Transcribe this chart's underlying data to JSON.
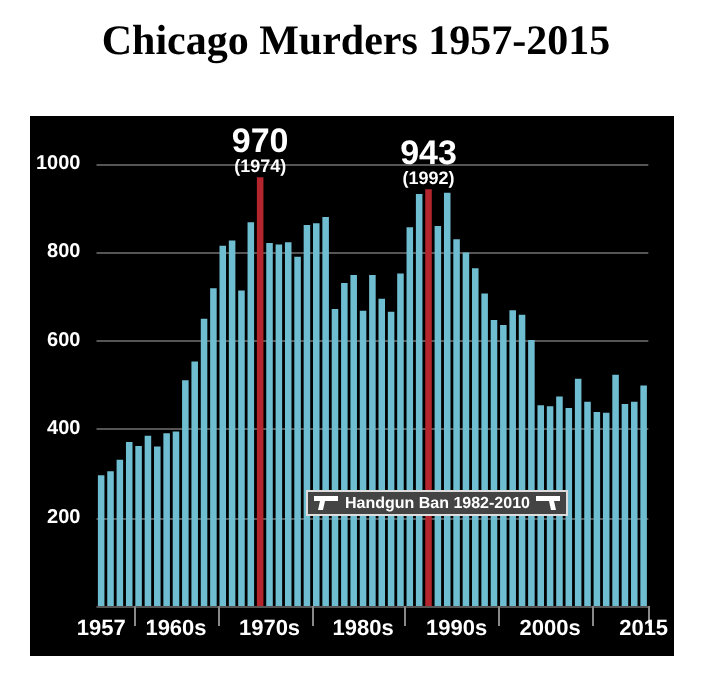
{
  "chart_data": {
    "type": "bar",
    "title": "Chicago Murders 1957-2015",
    "categories": [
      "1957",
      null,
      null,
      null,
      null,
      null,
      null,
      null,
      "1960s",
      null,
      null,
      null,
      null,
      null,
      null,
      null,
      null,
      null,
      "1970s",
      null,
      null,
      null,
      null,
      null,
      null,
      null,
      null,
      null,
      "1980s",
      null,
      null,
      null,
      null,
      null,
      null,
      null,
      null,
      null,
      "1990s",
      null,
      null,
      null,
      null,
      null,
      null,
      null,
      null,
      null,
      "2000s",
      null,
      null,
      null,
      null,
      null,
      null,
      null,
      null,
      null,
      "2015"
    ],
    "values": [
      296,
      305,
      331,
      371,
      362,
      385,
      361,
      391,
      395,
      511,
      553,
      650,
      719,
      815,
      827,
      714,
      868,
      970,
      821,
      818,
      823,
      790,
      862,
      866,
      880,
      672,
      731,
      749,
      668,
      749,
      695,
      666,
      752,
      857,
      932,
      943,
      860,
      935,
      830,
      800,
      764,
      707,
      647,
      636,
      669,
      659,
      602,
      454,
      452,
      474,
      448,
      514,
      462,
      439,
      437,
      523,
      457,
      462,
      499
    ],
    "colors": [
      "#6fbdd1",
      "#6fbdd1",
      "#6fbdd1",
      "#6fbdd1",
      "#6fbdd1",
      "#6fbdd1",
      "#6fbdd1",
      "#6fbdd1",
      "#6fbdd1",
      "#6fbdd1",
      "#6fbdd1",
      "#6fbdd1",
      "#6fbdd1",
      "#6fbdd1",
      "#6fbdd1",
      "#6fbdd1",
      "#6fbdd1",
      "#b3262d",
      "#6fbdd1",
      "#6fbdd1",
      "#6fbdd1",
      "#6fbdd1",
      "#6fbdd1",
      "#6fbdd1",
      "#6fbdd1",
      "#6fbdd1",
      "#6fbdd1",
      "#6fbdd1",
      "#6fbdd1",
      "#6fbdd1",
      "#6fbdd1",
      "#6fbdd1",
      "#6fbdd1",
      "#6fbdd1",
      "#6fbdd1",
      "#b3262d",
      "#6fbdd1",
      "#6fbdd1",
      "#6fbdd1",
      "#6fbdd1",
      "#6fbdd1",
      "#6fbdd1",
      "#6fbdd1",
      "#6fbdd1",
      "#6fbdd1",
      "#6fbdd1",
      "#6fbdd1",
      "#6fbdd1",
      "#6fbdd1",
      "#6fbdd1",
      "#6fbdd1",
      "#6fbdd1",
      "#6fbdd1",
      "#6fbdd1",
      "#6fbdd1",
      "#6fbdd1",
      "#6fbdd1",
      "#6fbdd1",
      "#6fbdd1"
    ],
    "value_labels": [
      null,
      null,
      null,
      null,
      null,
      null,
      null,
      null,
      null,
      null,
      null,
      null,
      null,
      null,
      null,
      null,
      null,
      "970",
      null,
      null,
      null,
      null,
      null,
      null,
      null,
      null,
      null,
      null,
      null,
      null,
      null,
      null,
      null,
      null,
      null,
      "943",
      null,
      null,
      null,
      null,
      null,
      null,
      null,
      null,
      null,
      null,
      null,
      null,
      null,
      null,
      null,
      null,
      null,
      null,
      null,
      null,
      null,
      null,
      null
    ],
    "annotations": [
      "(1974)",
      "(1992)",
      "Handgun Ban 1982-2010"
    ],
    "ylim": [
      0,
      1000
    ],
    "yticks": [
      {
        "value": 0,
        "label": null
      },
      200,
      400,
      600,
      800,
      1000
    ],
    "grid": "y"
  }
}
